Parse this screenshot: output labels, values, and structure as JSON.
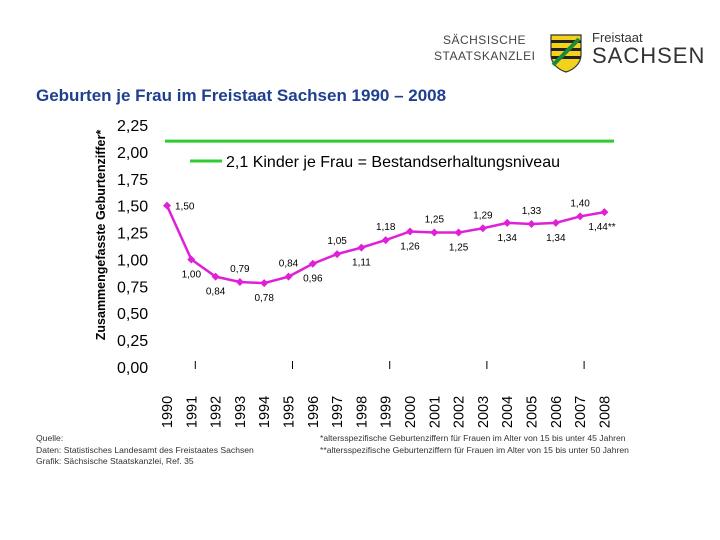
{
  "header": {
    "left_line1": "SÄCHSISCHE",
    "left_line2": "STAATSKANZLEI",
    "right_small": "Freistaat",
    "right_big": "SACHSEN",
    "colors": {
      "crest_green": "#1a8a3a",
      "crest_yellow": "#f2d21a"
    }
  },
  "title": "Geburten je Frau im Freistaat Sachsen 1990 – 2008",
  "footer": {
    "source_lines": [
      "Quelle:",
      "Daten: Statistisches Landesamt des Freistaates Sachsen",
      "Grafik: Sächsische Staatskanzlei, Ref. 35"
    ],
    "note_lines": [
      "*altersspezifische Geburtenziffern für Frauen im Alter von 15 bis unter 45 Jahren",
      "**altersspezifische Geburtenziffern für Frauen im Alter von 15 bis unter 50 Jahren"
    ]
  },
  "chart_data": {
    "type": "line",
    "title": "Geburten je Frau im Freistaat Sachsen 1990 – 2008",
    "ylabel": "Zusammengefasste Geburtenziffer*",
    "xlabel": "",
    "ylim": [
      0,
      2.25
    ],
    "y_ticks": [
      "0,00",
      "0,25",
      "0,50",
      "0,75",
      "1,00",
      "1,25",
      "1,50",
      "1,75",
      "2,00",
      "2,25"
    ],
    "x": [
      "1990",
      "1991",
      "1992",
      "1993",
      "1994",
      "1995",
      "1996",
      "1997",
      "1998",
      "1999",
      "2000",
      "2001",
      "2002",
      "2003",
      "2004",
      "2005",
      "2006",
      "2007",
      "2008"
    ],
    "series": [
      {
        "name": "Geburten je Frau",
        "color": "#e020d8",
        "values": [
          1.5,
          1.0,
          0.84,
          0.79,
          0.78,
          0.84,
          0.96,
          1.05,
          1.11,
          1.18,
          1.26,
          1.25,
          1.25,
          1.29,
          1.34,
          1.33,
          1.34,
          1.4,
          1.44
        ],
        "labels": [
          "1,50",
          "1,00",
          "0,84",
          "0,79",
          "0,78",
          "0,84",
          "0,96",
          "1,05",
          "1,11",
          "1,18",
          "1,26",
          "1,25",
          "1,25",
          "1,29",
          "1,34",
          "1,33",
          "1,34",
          "1,40",
          "1,44**"
        ],
        "label_side": [
          "right",
          "below",
          "below",
          "above",
          "below",
          "above",
          "below",
          "above",
          "below",
          "above",
          "below",
          "above",
          "below",
          "above",
          "below",
          "above",
          "below",
          "above",
          "right"
        ]
      }
    ],
    "reference_line": {
      "value": 2.1,
      "label": "2,1 Kinder je Frau = Bestandserhaltungsniveau",
      "color": "#2ecc2e"
    },
    "grid": false
  }
}
